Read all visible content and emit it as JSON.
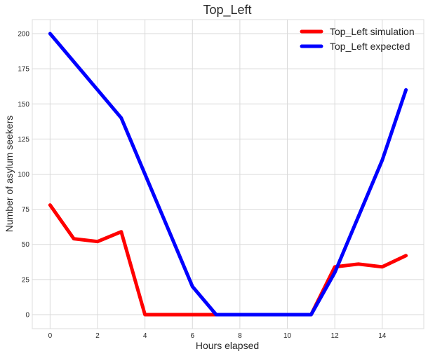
{
  "chart_data": {
    "type": "line",
    "title": "Top_Left",
    "xlabel": "Hours elapsed",
    "ylabel": "Number of asylum seekers",
    "xlim": [
      -0.75,
      15.75
    ],
    "ylim": [
      -10,
      210
    ],
    "xticks": [
      0,
      2,
      4,
      6,
      8,
      10,
      12,
      14
    ],
    "yticks": [
      0,
      25,
      50,
      75,
      100,
      125,
      150,
      175,
      200
    ],
    "grid": true,
    "legend_position": "top-right",
    "series": [
      {
        "name": "Top_Left simulation",
        "color": "#ff0000",
        "x": [
          0,
          1,
          2,
          3,
          4,
          5,
          6,
          7,
          8,
          9,
          10,
          11,
          12,
          13,
          14,
          15
        ],
        "y": [
          78,
          54,
          52,
          59,
          0,
          0,
          0,
          0,
          0,
          0,
          0,
          0,
          34,
          36,
          34,
          42
        ]
      },
      {
        "name": "Top_Left expected",
        "color": "#0000ff",
        "x": [
          0,
          1,
          2,
          3,
          4,
          5,
          6,
          7,
          8,
          9,
          10,
          11,
          12,
          13,
          14,
          15
        ],
        "y": [
          200,
          180,
          160,
          140,
          100,
          60,
          20,
          0,
          0,
          0,
          0,
          0,
          30,
          70,
          110,
          160
        ]
      }
    ]
  }
}
